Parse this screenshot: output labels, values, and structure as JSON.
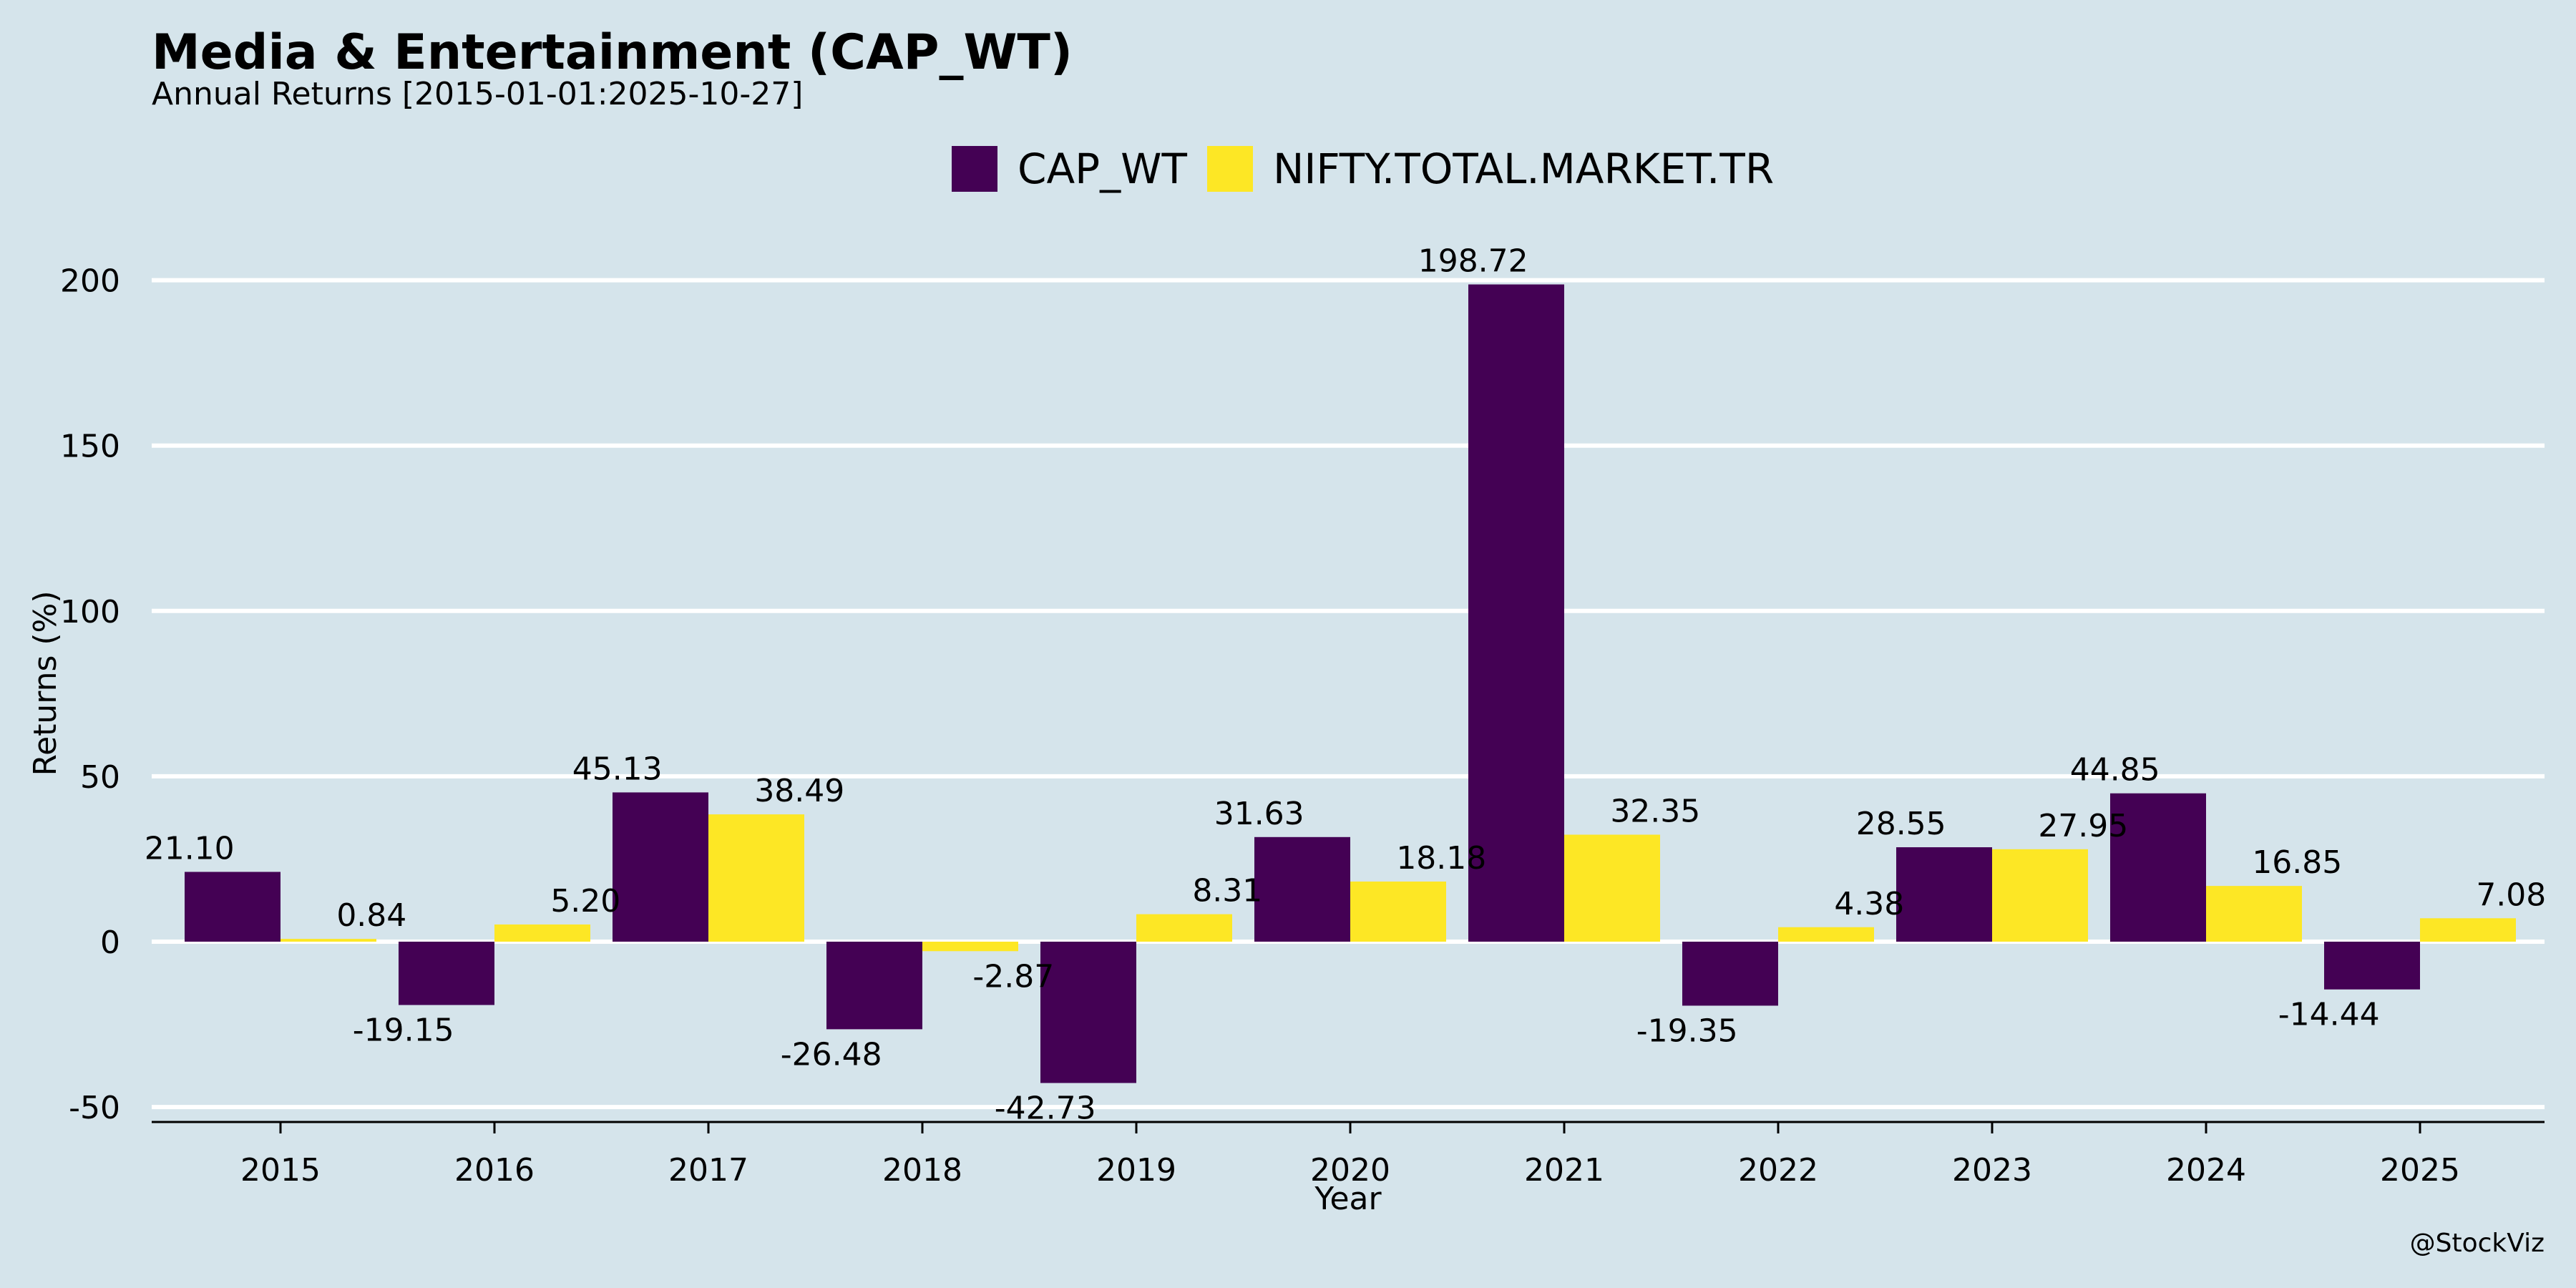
{
  "chart_data": {
    "type": "bar",
    "title": "Media & Entertainment (CAP_WT)",
    "subtitle": "Annual Returns [2015-01-01:2025-10-27]",
    "xlabel": "Year",
    "ylabel": "Returns (%)",
    "ylim": [
      -55,
      200
    ],
    "yticks": [
      -50,
      0,
      50,
      100,
      150,
      200
    ],
    "grid": true,
    "legend_position": "top-center",
    "categories": [
      "2015",
      "2016",
      "2017",
      "2018",
      "2019",
      "2020",
      "2021",
      "2022",
      "2023",
      "2024",
      "2025"
    ],
    "series": [
      {
        "name": "CAP_WT",
        "color": "#440154",
        "values": [
          21.1,
          -19.15,
          45.13,
          -26.48,
          -42.73,
          31.63,
          198.72,
          -19.35,
          28.55,
          44.85,
          -14.44
        ],
        "labels": [
          "21.10",
          "-19.15",
          "45.13",
          "-26.48",
          "-42.73",
          "31.63",
          "198.72",
          "-19.35",
          "28.55",
          "44.85",
          "-14.44"
        ]
      },
      {
        "name": "NIFTY.TOTAL.MARKET.TR",
        "color": "#fde725",
        "values": [
          0.84,
          5.2,
          38.49,
          -2.87,
          8.31,
          18.18,
          32.35,
          4.38,
          27.95,
          16.85,
          7.08
        ],
        "labels": [
          "0.84",
          "5.20",
          "38.49",
          "-2.87",
          "8.31",
          "18.18",
          "32.35",
          "4.38",
          "27.95",
          "16.85",
          "7.08"
        ]
      }
    ]
  },
  "credit": "@StockViz"
}
